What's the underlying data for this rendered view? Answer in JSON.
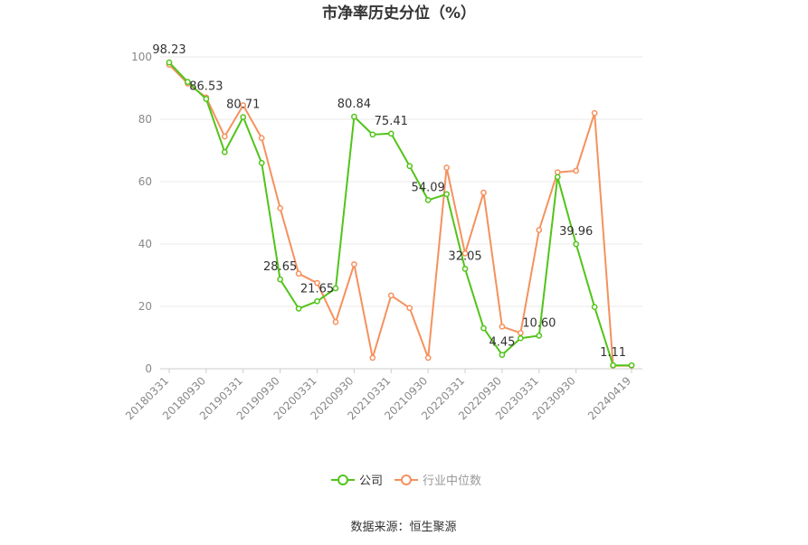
{
  "chart_data": {
    "type": "line",
    "title": "市净率历史分位（%）",
    "xlabel": "",
    "ylabel": "",
    "ylim": [
      0,
      100
    ],
    "yticks": [
      0,
      20,
      40,
      60,
      80,
      100
    ],
    "grid": true,
    "legend_position": "bottom",
    "x": [
      "20180331",
      "20180630",
      "20180930",
      "20181231",
      "20190331",
      "20190630",
      "20190930",
      "20191231",
      "20200331",
      "20200630",
      "20200930",
      "20201231",
      "20210331",
      "20210630",
      "20210930",
      "20211231",
      "20220331",
      "20220630",
      "20220930",
      "20221231",
      "20230331",
      "20230630",
      "20230930",
      "20231231",
      "20240331",
      "20240419"
    ],
    "x_tick_labels": [
      "20180331",
      "20180930",
      "20190331",
      "20190930",
      "20200331",
      "20200930",
      "20210331",
      "20210930",
      "20220331",
      "20220930",
      "20230331",
      "20230930",
      "20240419"
    ],
    "series": [
      {
        "name": "公司",
        "color": "#52c41a",
        "values": [
          98.23,
          92.0,
          86.53,
          69.5,
          80.71,
          66.0,
          28.65,
          19.3,
          21.65,
          25.8,
          80.84,
          75.1,
          75.41,
          65.0,
          54.09,
          56.0,
          32.05,
          13.0,
          4.45,
          9.8,
          10.6,
          61.5,
          39.96,
          19.8,
          1.11,
          1.11
        ],
        "labels": {
          "0": "98.23",
          "2": "86.53",
          "4": "80.71",
          "6": "28.65",
          "8": "21.65",
          "10": "80.84",
          "12": "75.41",
          "14": "54.09",
          "16": "32.05",
          "18": "4.45",
          "20": "10.60",
          "22": "39.96",
          "24": "1.11"
        }
      },
      {
        "name": "行业中位数",
        "color": "#f5915e",
        "values": [
          97.5,
          91.5,
          87.0,
          74.5,
          84.5,
          74.0,
          51.5,
          30.5,
          27.5,
          15.0,
          33.5,
          3.5,
          23.5,
          19.5,
          3.5,
          64.5,
          37.0,
          56.5,
          13.5,
          11.5,
          44.5,
          63.0,
          63.5,
          82.0,
          1.0,
          1.0
        ]
      }
    ],
    "source": "数据来源：恒生聚源"
  }
}
